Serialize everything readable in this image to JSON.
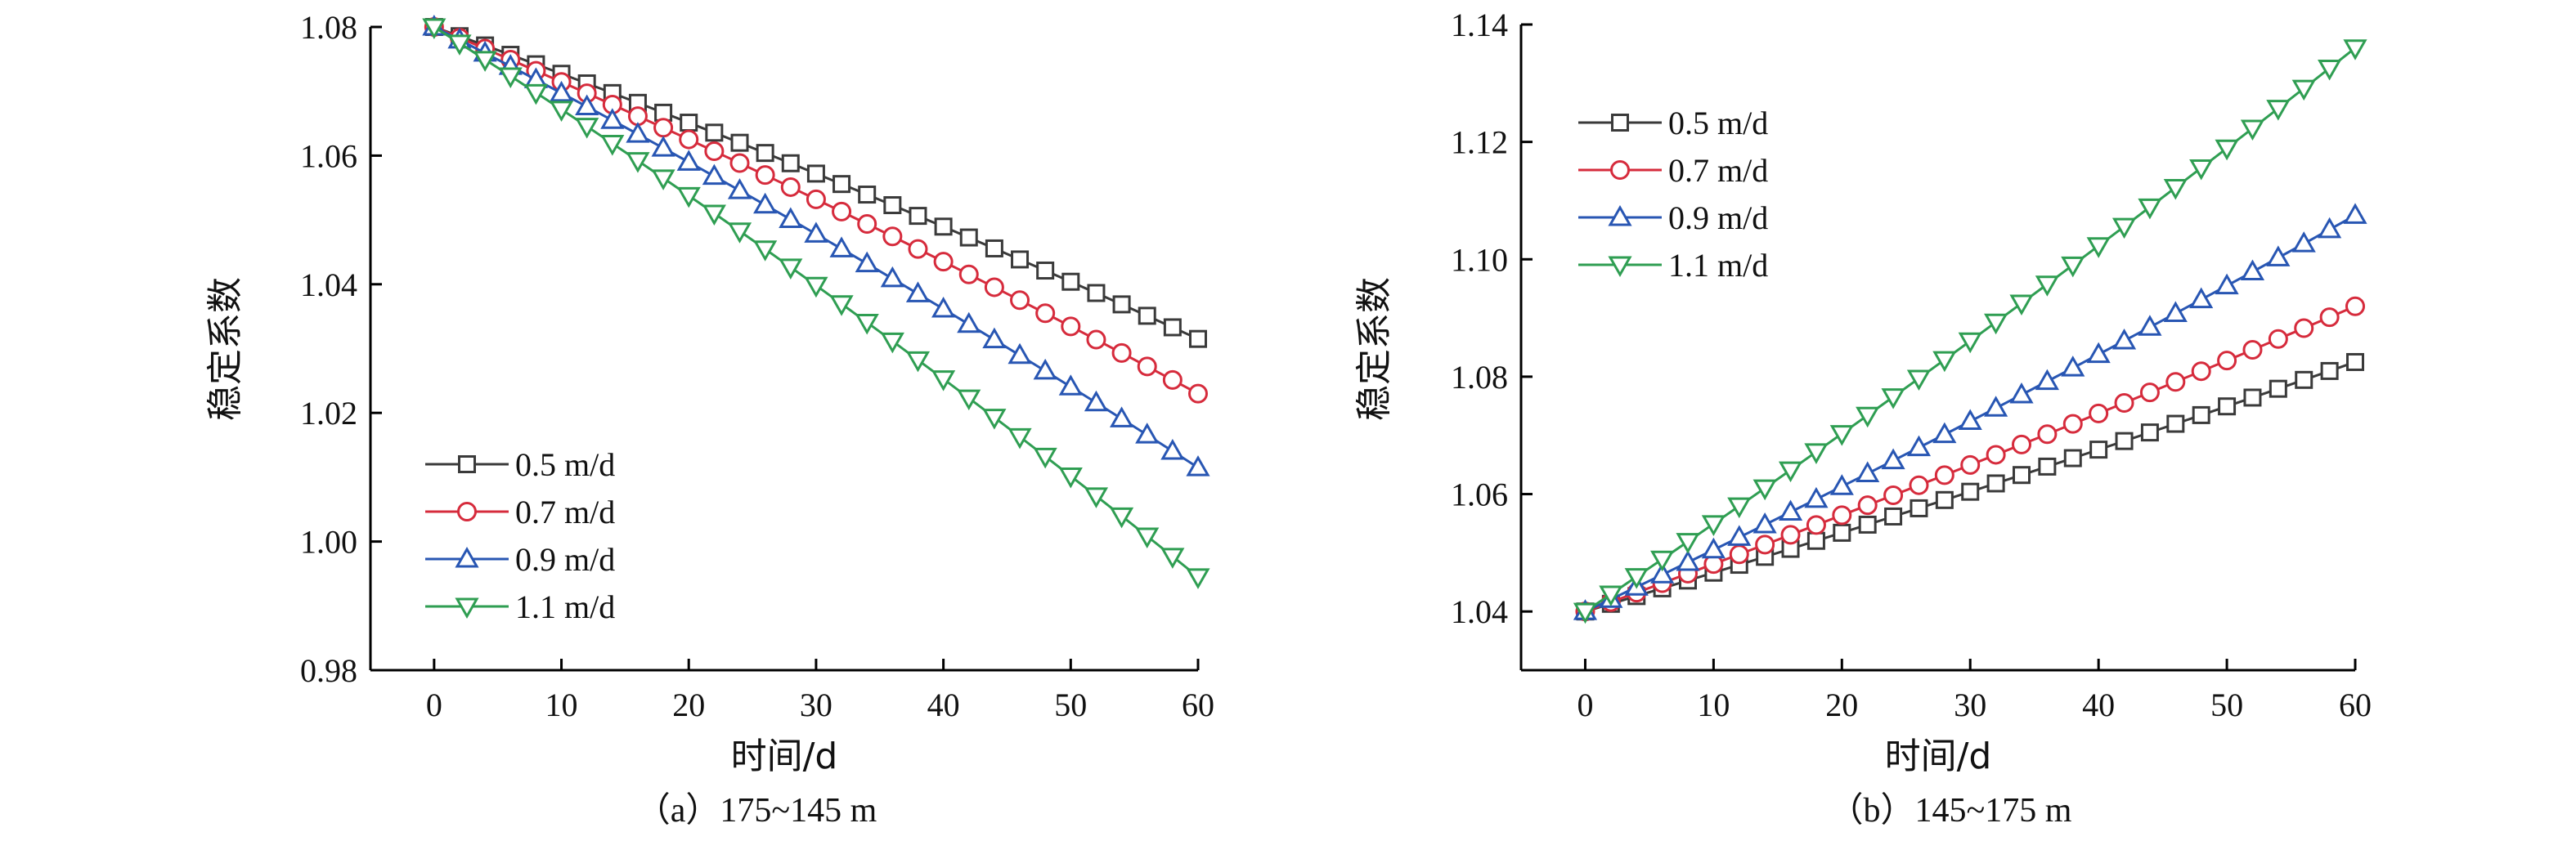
{
  "colors": {
    "s05": "#3a3a3a",
    "s07": "#d62b3c",
    "s09": "#2856b3",
    "s11": "#2f9e52"
  },
  "chart_data": [
    {
      "type": "line",
      "caption": "（a）175~145 m",
      "xlabel": "时间/d",
      "ylabel": "稳定系数",
      "xlim": [
        -5,
        60
      ],
      "ylim": [
        0.98,
        1.08
      ],
      "xticks": [
        0,
        10,
        20,
        30,
        40,
        50,
        60
      ],
      "yticks": [
        0.98,
        1.0,
        1.02,
        1.04,
        1.06,
        1.08
      ],
      "ytick_labels": [
        "0.98",
        "1.00",
        "1.02",
        "1.04",
        "1.06",
        "1.08"
      ],
      "legend_position": "bottom-left",
      "x_start": 0,
      "x_step": 2,
      "x_end": 60,
      "series": [
        {
          "name": "0.5 m/d",
          "marker": "square",
          "color_key": "s05",
          "start": 1.08,
          "end": 1.0315
        },
        {
          "name": "0.7 m/d",
          "marker": "circle",
          "color_key": "s07",
          "start": 1.08,
          "end": 1.023
        },
        {
          "name": "0.9 m/d",
          "marker": "triangle-up",
          "color_key": "s09",
          "start": 1.08,
          "end": 1.0115
        },
        {
          "name": "1.1 m/d",
          "marker": "triangle-down",
          "color_key": "s11",
          "start": 1.08,
          "end": 0.9945
        }
      ]
    },
    {
      "type": "line",
      "caption": "（b）145~175 m",
      "xlabel": "时间/d",
      "ylabel": "稳定系数",
      "xlim": [
        -5,
        60
      ],
      "ylim": [
        1.03,
        1.14
      ],
      "xticks": [
        0,
        10,
        20,
        30,
        40,
        50,
        60
      ],
      "yticks": [
        1.04,
        1.06,
        1.08,
        1.1,
        1.12,
        1.14
      ],
      "ytick_labels": [
        "1.04",
        "1.06",
        "1.08",
        "1.10",
        "1.12",
        "1.14"
      ],
      "legend_position": "top-left",
      "x_start": 0,
      "x_step": 2,
      "x_end": 60,
      "series": [
        {
          "name": "0.5 m/d",
          "marker": "square",
          "color_key": "s05",
          "start": 1.04,
          "end": 1.0825
        },
        {
          "name": "0.7 m/d",
          "marker": "circle",
          "color_key": "s07",
          "start": 1.04,
          "end": 1.092
        },
        {
          "name": "0.9 m/d",
          "marker": "triangle-up",
          "color_key": "s09",
          "start": 1.04,
          "end": 1.1075
        },
        {
          "name": "1.1 m/d",
          "marker": "triangle-down",
          "color_key": "s11",
          "start": 1.04,
          "end": 1.136
        }
      ]
    }
  ]
}
